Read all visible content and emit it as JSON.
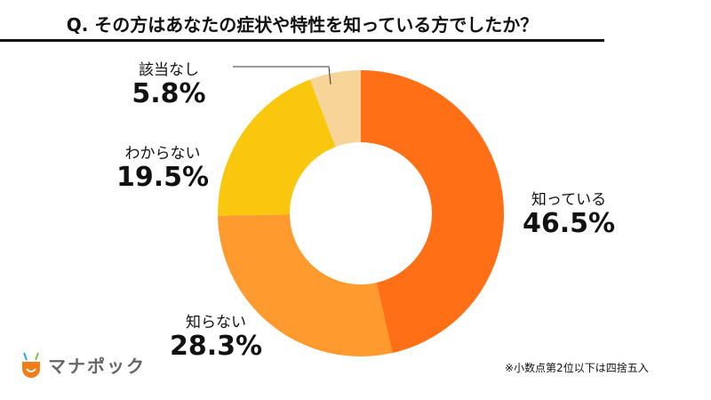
{
  "header": {
    "title": "Q. その方はあなたの症状や特性を知っている方でしたか？"
  },
  "chart_data": {
    "type": "pie",
    "donut": true,
    "title": "Q. その方はあなたの症状や特性を知っている方でしたか？",
    "categories": [
      "知っている",
      "知らない",
      "わからない",
      "該当なし"
    ],
    "values": [
      46.5,
      28.3,
      19.5,
      5.8
    ],
    "value_labels": [
      "46.5%",
      "28.3%",
      "19.5%",
      "5.8%"
    ],
    "colors": [
      "#FF6F16",
      "#FF9A2E",
      "#F9C80E",
      "#F7D497"
    ],
    "start": "top",
    "direction": "clockwise"
  },
  "footer": {
    "note": "※小数点第2位以下は四捨五入",
    "logo": "マナポック"
  }
}
